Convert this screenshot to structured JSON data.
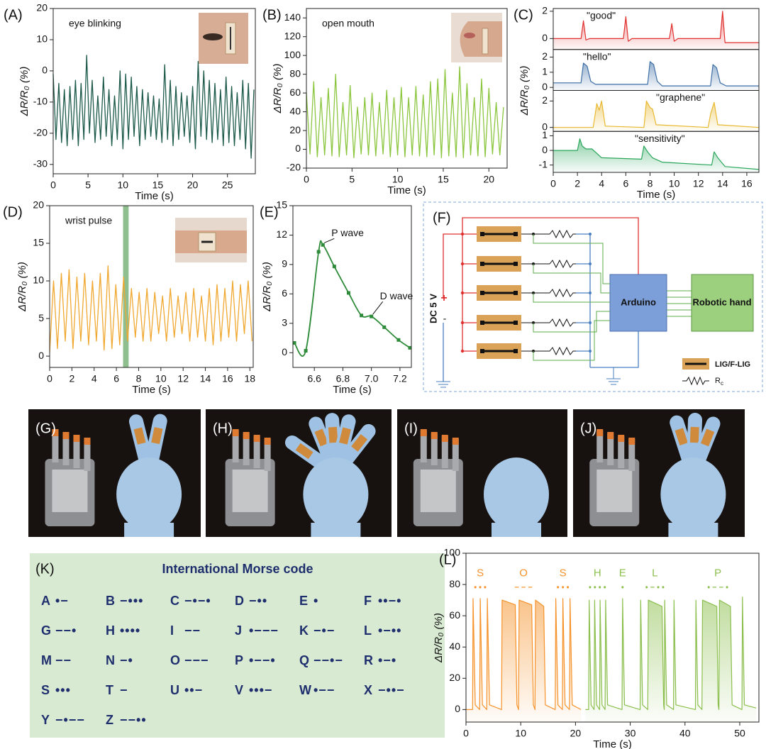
{
  "chart_data": [
    {
      "type": "line",
      "label": "(A)",
      "annotation": "eye blinking",
      "ylabel": "ΔR/R₀ (%)",
      "xlabel": "Time (s)",
      "color": "#1d5a4a",
      "xlim": [
        0,
        29
      ],
      "xticks": [
        0,
        5,
        10,
        15,
        20,
        25
      ],
      "ylim": [
        -33,
        20
      ],
      "yticks": [
        -30,
        -20,
        -10,
        0,
        10,
        20
      ],
      "x": [
        0,
        0.4,
        0.8,
        1.2,
        1.6,
        2.0,
        2.4,
        2.8,
        3.2,
        3.6,
        4.0,
        4.4,
        4.8,
        5.2,
        5.6,
        6.0,
        6.4,
        6.8,
        7.2,
        7.6,
        8.0,
        8.4,
        8.8,
        9.2,
        9.6,
        10.0,
        10.4,
        10.8,
        11.2,
        11.6,
        12.0,
        12.4,
        12.8,
        13.2,
        13.6,
        14.0,
        14.4,
        14.8,
        15.2,
        15.6,
        16.0,
        16.4,
        16.8,
        17.2,
        17.6,
        18.0,
        18.4,
        18.8,
        19.2,
        19.6,
        20.0,
        20.4,
        20.8,
        21.2,
        21.6,
        22.0,
        22.4,
        22.8,
        23.2,
        23.6,
        24.0,
        24.4,
        24.8,
        25.2,
        25.6,
        26.0,
        26.4,
        26.8,
        27.2,
        27.6,
        28.0,
        28.4,
        28.8
      ],
      "values": [
        -1,
        -22,
        -4,
        -23,
        -6,
        -24,
        -5,
        -22,
        -3,
        -24,
        -4,
        -22,
        5,
        -20,
        -3,
        -23,
        -8,
        -22,
        -2,
        -21,
        -6,
        -24,
        -8,
        -22,
        0,
        -25,
        -1,
        -22,
        -2,
        -21,
        -5,
        -24,
        -6,
        -22,
        -7,
        -21,
        -8,
        -22,
        -9,
        -23,
        2,
        -22,
        -3,
        -24,
        -5,
        -22,
        -7,
        -21,
        -8,
        -23,
        -5,
        -25,
        3,
        -21,
        0,
        -22,
        -3,
        -23,
        -4,
        -22,
        -6,
        -24,
        -2,
        -23,
        -5,
        -24,
        -7,
        -22,
        -3,
        -25,
        -4,
        -28,
        -6
      ]
    },
    {
      "type": "line",
      "label": "(B)",
      "annotation": "open mouth",
      "ylabel": "ΔR/R₀ (%)",
      "xlabel": "Time (s)",
      "color": "#8cc63f",
      "xlim": [
        0,
        22
      ],
      "xticks": [
        0,
        5,
        10,
        15,
        20
      ],
      "ylim": [
        -20,
        150
      ],
      "yticks": [
        -20,
        0,
        20,
        40,
        60,
        80,
        100,
        120,
        140
      ],
      "x": [
        0,
        0.4,
        0.8,
        1.2,
        1.6,
        2.0,
        2.4,
        2.8,
        3.2,
        3.6,
        4.0,
        4.4,
        4.8,
        5.2,
        5.6,
        6.0,
        6.4,
        6.8,
        7.2,
        7.6,
        8.0,
        8.4,
        8.8,
        9.2,
        9.6,
        10.0,
        10.4,
        10.8,
        11.2,
        11.6,
        12.0,
        12.4,
        12.8,
        13.2,
        13.6,
        14.0,
        14.4,
        14.8,
        15.2,
        15.6,
        16.0,
        16.4,
        16.8,
        17.2,
        17.6,
        18.0,
        18.4,
        18.8,
        19.2,
        19.6,
        20.0,
        20.4,
        20.8,
        21.2,
        21.6
      ],
      "values": [
        60,
        -5,
        72,
        -8,
        55,
        -6,
        65,
        -7,
        80,
        -8,
        50,
        -6,
        68,
        -9,
        45,
        -5,
        55,
        -6,
        60,
        -7,
        50,
        -5,
        63,
        -8,
        55,
        -6,
        66,
        -8,
        55,
        -6,
        67,
        -7,
        58,
        -8,
        72,
        -6,
        75,
        -9,
        85,
        -7,
        60,
        -8,
        88,
        -9,
        70,
        -6,
        55,
        -7,
        75,
        -8,
        65,
        -5,
        50,
        -6,
        45
      ]
    },
    {
      "type": "stacked_line",
      "label": "(C)",
      "ylabel": "ΔR/R₀ (%)",
      "xlabel": "Time (s)",
      "xlim": [
        0,
        17
      ],
      "xticks": [
        0,
        2,
        4,
        6,
        8,
        10,
        12,
        14,
        16
      ],
      "series": [
        {
          "name": "\"good\"",
          "color": "#e0312f",
          "ylim": [
            -0.8,
            2.2
          ],
          "yticks": [
            0,
            2
          ],
          "x": [
            0,
            2.3,
            2.5,
            2.7,
            3,
            5.8,
            6.0,
            6.2,
            6.5,
            9.6,
            9.8,
            10.0,
            10.3,
            13.8,
            14.0,
            14.2,
            14.5,
            17
          ],
          "values": [
            0,
            0,
            1.3,
            -0.1,
            0,
            0,
            1.6,
            -0.2,
            0,
            0,
            1.1,
            -0.2,
            0,
            0,
            2.0,
            -0.3,
            -0.3,
            -0.3
          ]
        },
        {
          "name": "\"hello\"",
          "color": "#3d6ea5",
          "ylim": [
            -0.2,
            2.5
          ],
          "yticks": [
            0,
            1,
            2
          ],
          "x": [
            0,
            2.3,
            2.5,
            2.8,
            3.1,
            3.5,
            7.8,
            8.0,
            8.3,
            8.6,
            9.0,
            13.0,
            13.2,
            13.5,
            13.8,
            14.3,
            17
          ],
          "values": [
            0.3,
            0.3,
            1.6,
            1.4,
            0.4,
            0.2,
            0.2,
            1.7,
            1.5,
            0.4,
            0.1,
            0.1,
            1.5,
            1.3,
            0.3,
            0.1,
            0.1
          ]
        },
        {
          "name": "\"graphene\"",
          "color": "#e8b830",
          "ylim": [
            -0.3,
            2.8
          ],
          "yticks": [
            0,
            2
          ],
          "x": [
            0,
            3.3,
            3.6,
            3.8,
            4.0,
            4.3,
            7.5,
            7.7,
            8.0,
            8.2,
            8.5,
            12.8,
            13.0,
            13.3,
            13.6,
            17
          ],
          "values": [
            0,
            0,
            1.8,
            1.3,
            2.0,
            0.1,
            0,
            2.0,
            1.5,
            1.4,
            0.2,
            0,
            1.0,
            1.9,
            0.2,
            0
          ]
        },
        {
          "name": "\"sensitivity\"",
          "color": "#2aa65b",
          "ylim": [
            -1.5,
            1.3
          ],
          "yticks": [
            -1,
            0,
            1
          ],
          "x": [
            0,
            2.0,
            2.2,
            2.4,
            2.7,
            3.2,
            4.0,
            7.3,
            7.5,
            7.8,
            8.2,
            9.0,
            13.1,
            13.3,
            13.6,
            14.2,
            17
          ],
          "values": [
            0,
            0,
            0.8,
            0.3,
            0.1,
            0.1,
            -0.5,
            -0.6,
            0.3,
            -0.1,
            -0.5,
            -0.8,
            -1.0,
            -0.1,
            -0.5,
            -1.1,
            -1.3
          ]
        }
      ]
    },
    {
      "type": "line",
      "label": "(D)",
      "annotation": "wrist pulse",
      "ylabel": "ΔR/R₀ (%)",
      "xlabel": "Time (s)",
      "color": "#f0a830",
      "highlight_x": [
        6.6,
        7.1
      ],
      "highlight_color": "#6aa86a",
      "xlim": [
        0,
        18.3
      ],
      "xticks": [
        0,
        2,
        4,
        6,
        8,
        10,
        12,
        14,
        16,
        18
      ],
      "ylim": [
        -1.5,
        20
      ],
      "yticks": [
        0,
        5,
        10,
        15,
        20
      ],
      "x": [
        0,
        0.35,
        0.7,
        1.05,
        1.4,
        1.75,
        2.1,
        2.45,
        2.8,
        3.15,
        3.5,
        3.85,
        4.2,
        4.55,
        4.9,
        5.25,
        5.6,
        5.95,
        6.3,
        6.65,
        7.0,
        7.35,
        7.7,
        8.05,
        8.4,
        8.75,
        9.1,
        9.45,
        9.8,
        10.15,
        10.5,
        10.85,
        11.2,
        11.55,
        11.9,
        12.25,
        12.6,
        12.95,
        13.3,
        13.65,
        14.0,
        14.35,
        14.7,
        15.05,
        15.4,
        15.75,
        16.1,
        16.45,
        16.8,
        17.15,
        17.5,
        17.85,
        18.2
      ],
      "values": [
        0.5,
        10,
        1,
        11,
        2,
        11.5,
        1,
        10.5,
        2,
        11,
        1.5,
        10,
        2,
        11,
        0.8,
        12,
        1,
        9.5,
        1.5,
        10.5,
        2,
        9,
        2.5,
        8.5,
        2,
        9,
        2,
        8.5,
        3,
        8,
        2,
        9,
        2.5,
        8,
        3,
        8.5,
        2,
        9,
        2.5,
        8,
        2,
        9,
        1.5,
        9.5,
        2,
        9,
        2.5,
        10,
        2,
        9.5,
        3,
        10,
        2
      ]
    },
    {
      "type": "line_markers",
      "label": "(E)",
      "ylabel": "ΔR/R₀ (%)",
      "xlabel": "Time (s)",
      "color": "#2e8b3a",
      "xlim": [
        6.45,
        7.28
      ],
      "xticks": [
        6.6,
        6.8,
        {
          "value": 7,
          "label": "7.0"
        },
        7.2
      ],
      "ylim": [
        -1.5,
        15
      ],
      "yticks": [
        0,
        3,
        6,
        9,
        12,
        15
      ],
      "x": [
        6.46,
        6.54,
        6.63,
        6.66,
        6.74,
        6.84,
        6.93,
        7.0,
        7.09,
        7.19,
        7.27
      ],
      "values": [
        1,
        0.2,
        10.3,
        11,
        8.8,
        6.1,
        3.8,
        3.7,
        2.6,
        1.3,
        0.5
      ],
      "annotations": [
        {
          "text": "P wave",
          "x": 6.66,
          "y": 11
        },
        {
          "text": "D wave",
          "x": 7.0,
          "y": 3.7
        }
      ]
    },
    {
      "type": "morse_line",
      "label": "(L)",
      "ylabel": "ΔR/R₀ (%)",
      "xlabel": "Time (s)",
      "xlim": [
        0,
        53.5
      ],
      "xticks": [
        0,
        10,
        20,
        30,
        40,
        50
      ],
      "ylim": [
        -8,
        100
      ],
      "yticks": [
        0,
        20,
        40,
        60,
        80,
        100
      ],
      "series": [
        {
          "color": "#f5922a",
          "x": [
            0,
            1.2,
            1.3,
            1.7,
            2.5,
            2.6,
            3.0,
            3.8,
            3.9,
            4.3,
            6.5,
            6.6,
            9.0,
            9.3,
            9.6,
            9.7,
            12.0,
            12.3,
            12.6,
            12.7,
            14.2,
            14.5,
            16.3,
            16.4,
            16.8,
            17.6,
            17.7,
            18.1,
            18.9,
            19.0,
            19.4,
            21.0
          ],
          "values": [
            0,
            0,
            71,
            3,
            0,
            71,
            3,
            0,
            71,
            3,
            0,
            70,
            67,
            3,
            0,
            70,
            67,
            3,
            0,
            70,
            66,
            3,
            0,
            71,
            3,
            0,
            71,
            3,
            0,
            71,
            3,
            0
          ]
        },
        {
          "color": "#8cbf4e",
          "x": [
            21.8,
            22.4,
            22.5,
            22.85,
            23.4,
            23.5,
            23.85,
            24.4,
            24.5,
            24.85,
            25.4,
            25.5,
            25.85,
            28.5,
            28.6,
            28.95,
            31.8,
            31.9,
            32.25,
            33.2,
            33.3,
            35.8,
            36.1,
            36.2,
            36.3,
            36.65,
            37.9,
            38.0,
            38.35,
            41.9,
            42.0,
            42.35,
            43.1,
            43.2,
            45.8,
            46.05,
            46.2,
            46.3,
            48.3,
            48.6,
            50.4,
            50.5,
            50.85,
            53
          ],
          "values": [
            0,
            0,
            70,
            3,
            0,
            70,
            3,
            0,
            70,
            3,
            0,
            70,
            3,
            0,
            71,
            3,
            0,
            70,
            3,
            0,
            70,
            66,
            3,
            0,
            70,
            3,
            0,
            70,
            3,
            0,
            70,
            3,
            0,
            70,
            66,
            3,
            0,
            70,
            66,
            3,
            0,
            72,
            3,
            1
          ]
        }
      ],
      "annotations": [
        {
          "text": "S",
          "code": "• • •",
          "x": 2.6,
          "color": "#f5922a"
        },
        {
          "text": "O",
          "code": "− − −",
          "x": 10.5,
          "color": "#f5922a"
        },
        {
          "text": "S",
          "code": "• • •",
          "x": 17.7,
          "color": "#f5922a"
        },
        {
          "text": "H",
          "code": "• • • •",
          "x": 24,
          "color": "#8cbf4e"
        },
        {
          "text": "E",
          "code": "•",
          "x": 28.6,
          "color": "#8cbf4e"
        },
        {
          "text": "L",
          "code": "• − • •",
          "x": 34.5,
          "color": "#8cbf4e"
        },
        {
          "text": "P",
          "code": "• − − •",
          "x": 46,
          "color": "#8cbf4e"
        }
      ]
    }
  ],
  "circuit": {
    "label": "(F)",
    "source": "DC 5 V",
    "plus": "+",
    "minus": "-",
    "controller": "Arduino",
    "output": "Robotic hand",
    "legend_sensor": "LIG/F-LIG",
    "legend_resistor": "R",
    "legend_resistor_sub": "c"
  },
  "photos": [
    {
      "label": "(G)"
    },
    {
      "label": "(H)"
    },
    {
      "label": "(I)"
    },
    {
      "label": "(J)"
    }
  ],
  "morse_table": {
    "label": "(K)",
    "title": "International Morse code",
    "entries": [
      {
        "letter": "A",
        "code": "•−"
      },
      {
        "letter": "B",
        "code": "−•••"
      },
      {
        "letter": "C",
        "code": "−•−•"
      },
      {
        "letter": "D",
        "code": "−••"
      },
      {
        "letter": "E",
        "code": "•"
      },
      {
        "letter": "F",
        "code": "••−•"
      },
      {
        "letter": "G",
        "code": "−−•"
      },
      {
        "letter": "H",
        "code": "••••"
      },
      {
        "letter": "I",
        "code": "−−"
      },
      {
        "letter": "J",
        "code": "•−−−"
      },
      {
        "letter": "K",
        "code": "−•−"
      },
      {
        "letter": "L",
        "code": "•−••"
      },
      {
        "letter": "M",
        "code": "−−"
      },
      {
        "letter": "N",
        "code": "−•"
      },
      {
        "letter": "O",
        "code": "−−−"
      },
      {
        "letter": "P",
        "code": "•−−•"
      },
      {
        "letter": "Q",
        "code": "−−•−"
      },
      {
        "letter": "R",
        "code": "•−•"
      },
      {
        "letter": "S",
        "code": "•••"
      },
      {
        "letter": "T",
        "code": "−"
      },
      {
        "letter": "U",
        "code": "••−"
      },
      {
        "letter": "V",
        "code": "•••−"
      },
      {
        "letter": "W",
        "code": "•−−"
      },
      {
        "letter": "X",
        "code": "−••−"
      },
      {
        "letter": "Y",
        "code": "−•−−"
      },
      {
        "letter": "Z",
        "code": "−−••"
      }
    ]
  }
}
